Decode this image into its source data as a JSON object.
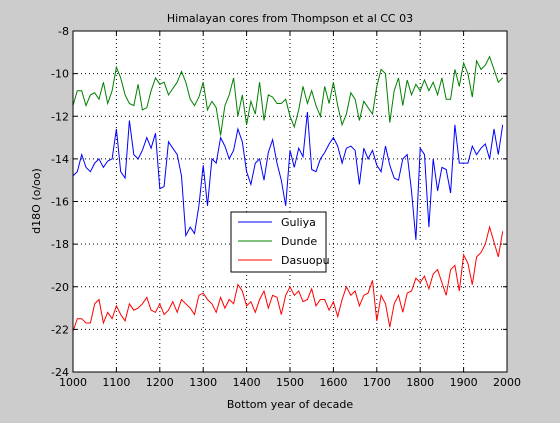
{
  "chart_data": {
    "type": "line",
    "title": "Himalayan cores from Thompson et al CC 03",
    "xlabel": "Bottom year of decade",
    "ylabel": "d18O (o/oo)",
    "xlim": [
      1000,
      2000
    ],
    "ylim": [
      -24,
      -8
    ],
    "xticks": [
      1000,
      1100,
      1200,
      1300,
      1400,
      1500,
      1600,
      1700,
      1800,
      1900,
      2000
    ],
    "yticks": [
      -24,
      -22,
      -20,
      -18,
      -16,
      -14,
      -12,
      -10,
      -8
    ],
    "grid": true,
    "legend_position": "center",
    "series": [
      {
        "name": "Guliya",
        "color": "#0000ff",
        "x": [
          1000,
          1010,
          1020,
          1030,
          1040,
          1050,
          1060,
          1070,
          1080,
          1090,
          1100,
          1110,
          1120,
          1130,
          1140,
          1150,
          1160,
          1170,
          1180,
          1190,
          1200,
          1210,
          1220,
          1230,
          1240,
          1250,
          1260,
          1270,
          1280,
          1290,
          1300,
          1310,
          1320,
          1330,
          1340,
          1350,
          1360,
          1370,
          1380,
          1390,
          1400,
          1410,
          1420,
          1430,
          1440,
          1450,
          1460,
          1470,
          1480,
          1490,
          1500,
          1510,
          1520,
          1530,
          1540,
          1550,
          1560,
          1570,
          1580,
          1590,
          1600,
          1610,
          1620,
          1630,
          1640,
          1650,
          1660,
          1670,
          1680,
          1690,
          1700,
          1710,
          1720,
          1730,
          1740,
          1750,
          1760,
          1770,
          1780,
          1790,
          1800,
          1810,
          1820,
          1830,
          1840,
          1850,
          1860,
          1870,
          1880,
          1890,
          1900,
          1910,
          1920,
          1930,
          1940,
          1950,
          1960,
          1970,
          1980,
          1990
        ],
        "values": [
          -14.8,
          -14.6,
          -13.8,
          -14.4,
          -14.6,
          -14.2,
          -14.0,
          -14.4,
          -14.1,
          -14.0,
          -12.6,
          -14.6,
          -14.9,
          -12.2,
          -13.8,
          -14.0,
          -13.6,
          -13.0,
          -13.5,
          -12.8,
          -15.4,
          -15.3,
          -13.2,
          -13.5,
          -13.8,
          -14.8,
          -17.6,
          -17.2,
          -17.5,
          -16.2,
          -14.3,
          -16.2,
          -14.0,
          -14.2,
          -13.0,
          -13.4,
          -14.0,
          -13.6,
          -12.6,
          -13.2,
          -14.6,
          -15.2,
          -14.2,
          -14.0,
          -15.0,
          -13.7,
          -13.1,
          -14.2,
          -15.0,
          -16.2,
          -13.6,
          -14.4,
          -13.5,
          -13.9,
          -11.8,
          -14.5,
          -14.6,
          -14.0,
          -13.7,
          -13.3,
          -13.0,
          -13.4,
          -14.2,
          -13.5,
          -13.4,
          -13.6,
          -15.2,
          -13.5,
          -14.0,
          -13.6,
          -14.3,
          -14.6,
          -13.4,
          -14.3,
          -14.9,
          -15.0,
          -14.0,
          -13.8,
          -15.5,
          -17.8,
          -13.5,
          -13.8,
          -17.2,
          -14.0,
          -15.5,
          -14.4,
          -14.5,
          -15.6,
          -12.4,
          -14.2,
          -14.2,
          -14.2,
          -13.4,
          -13.8,
          -13.5,
          -13.3,
          -14.0,
          -12.6,
          -13.8,
          -12.4
        ]
      },
      {
        "name": "Dunde",
        "color": "#008000",
        "x": [
          1000,
          1010,
          1020,
          1030,
          1040,
          1050,
          1060,
          1070,
          1080,
          1090,
          1100,
          1110,
          1120,
          1130,
          1140,
          1150,
          1160,
          1170,
          1180,
          1190,
          1200,
          1210,
          1220,
          1230,
          1240,
          1250,
          1260,
          1270,
          1280,
          1290,
          1300,
          1310,
          1320,
          1330,
          1340,
          1350,
          1360,
          1370,
          1380,
          1390,
          1400,
          1410,
          1420,
          1430,
          1440,
          1450,
          1460,
          1470,
          1480,
          1490,
          1500,
          1510,
          1520,
          1530,
          1540,
          1550,
          1560,
          1570,
          1580,
          1590,
          1600,
          1610,
          1620,
          1630,
          1640,
          1650,
          1660,
          1670,
          1680,
          1690,
          1700,
          1710,
          1720,
          1730,
          1740,
          1750,
          1760,
          1770,
          1780,
          1790,
          1800,
          1810,
          1820,
          1830,
          1840,
          1850,
          1860,
          1870,
          1880,
          1890,
          1900,
          1910,
          1920,
          1930,
          1940,
          1950,
          1960,
          1970,
          1980,
          1990
        ],
        "values": [
          -11.5,
          -10.8,
          -10.8,
          -11.5,
          -11.0,
          -10.9,
          -11.2,
          -10.4,
          -11.4,
          -10.8,
          -9.7,
          -10.2,
          -11.0,
          -11.4,
          -11.5,
          -10.5,
          -11.7,
          -11.6,
          -10.8,
          -10.2,
          -10.5,
          -10.4,
          -11.0,
          -10.7,
          -10.4,
          -9.9,
          -10.4,
          -11.2,
          -11.5,
          -11.1,
          -10.4,
          -11.7,
          -11.3,
          -11.6,
          -12.9,
          -11.5,
          -11.0,
          -10.2,
          -12.0,
          -11.0,
          -12.4,
          -11.3,
          -11.9,
          -10.4,
          -12.2,
          -11.0,
          -11.1,
          -11.4,
          -11.4,
          -11.2,
          -12.0,
          -12.5,
          -11.7,
          -10.6,
          -11.4,
          -10.8,
          -11.5,
          -12.0,
          -10.6,
          -11.4,
          -10.4,
          -11.5,
          -12.4,
          -11.9,
          -10.9,
          -11.2,
          -12.2,
          -11.3,
          -11.6,
          -11.9,
          -10.6,
          -9.8,
          -10.0,
          -12.3,
          -10.8,
          -10.2,
          -11.5,
          -10.3,
          -11.0,
          -10.5,
          -10.8,
          -10.3,
          -10.8,
          -10.4,
          -11.0,
          -10.2,
          -11.2,
          -11.2,
          -9.8,
          -10.6,
          -9.5,
          -10.0,
          -11.1,
          -9.4,
          -9.8,
          -9.6,
          -9.2,
          -9.8,
          -10.4,
          -10.2
        ]
      },
      {
        "name": "Dasuopu",
        "color": "#ff0000",
        "x": [
          1000,
          1010,
          1020,
          1030,
          1040,
          1050,
          1060,
          1070,
          1080,
          1090,
          1100,
          1110,
          1120,
          1130,
          1140,
          1150,
          1160,
          1170,
          1180,
          1190,
          1200,
          1210,
          1220,
          1230,
          1240,
          1250,
          1260,
          1270,
          1280,
          1290,
          1300,
          1310,
          1320,
          1330,
          1340,
          1350,
          1360,
          1370,
          1380,
          1390,
          1400,
          1410,
          1420,
          1430,
          1440,
          1450,
          1460,
          1470,
          1480,
          1490,
          1500,
          1510,
          1520,
          1530,
          1540,
          1550,
          1560,
          1570,
          1580,
          1590,
          1600,
          1610,
          1620,
          1630,
          1640,
          1650,
          1660,
          1670,
          1680,
          1690,
          1700,
          1710,
          1720,
          1730,
          1740,
          1750,
          1760,
          1770,
          1780,
          1790,
          1800,
          1810,
          1820,
          1830,
          1840,
          1850,
          1860,
          1870,
          1880,
          1890,
          1900,
          1910,
          1920,
          1930,
          1940,
          1950,
          1960,
          1970,
          1980,
          1990
        ],
        "values": [
          -22.1,
          -21.5,
          -21.5,
          -21.7,
          -21.7,
          -20.8,
          -20.6,
          -21.7,
          -21.2,
          -21.5,
          -20.9,
          -21.3,
          -21.6,
          -20.8,
          -21.1,
          -21.0,
          -20.8,
          -20.5,
          -21.1,
          -21.2,
          -20.8,
          -21.3,
          -21.1,
          -20.7,
          -21.2,
          -20.6,
          -20.8,
          -21.0,
          -21.3,
          -20.4,
          -20.3,
          -20.6,
          -20.8,
          -21.2,
          -20.5,
          -21.0,
          -20.6,
          -20.8,
          -19.9,
          -20.2,
          -20.9,
          -20.7,
          -21.2,
          -20.6,
          -20.2,
          -21.0,
          -20.4,
          -20.5,
          -21.3,
          -20.4,
          -20.0,
          -20.4,
          -20.2,
          -20.7,
          -20.6,
          -20.1,
          -20.9,
          -20.6,
          -20.6,
          -21.1,
          -20.7,
          -21.4,
          -20.6,
          -20.0,
          -20.4,
          -20.2,
          -20.9,
          -20.4,
          -20.3,
          -19.7,
          -21.6,
          -20.4,
          -20.8,
          -21.9,
          -20.8,
          -20.4,
          -21.2,
          -20.3,
          -20.2,
          -19.6,
          -19.8,
          -19.5,
          -20.1,
          -19.4,
          -19.2,
          -19.8,
          -20.4,
          -19.2,
          -19.0,
          -20.2,
          -18.5,
          -18.9,
          -19.9,
          -18.6,
          -18.4,
          -18.0,
          -17.2,
          -17.9,
          -18.6,
          -17.4
        ]
      }
    ]
  }
}
